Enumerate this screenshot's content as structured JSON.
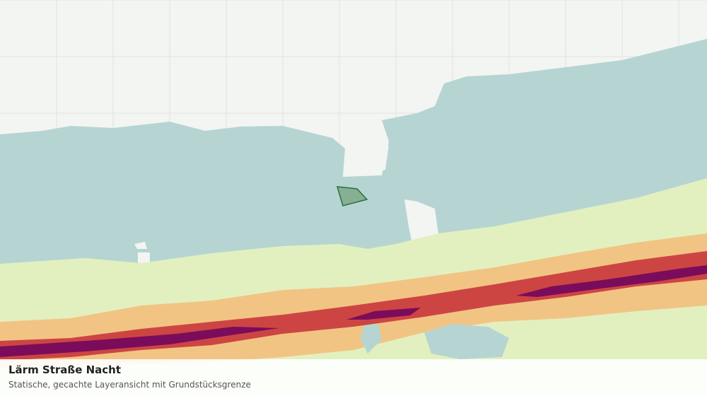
{
  "caption": {
    "title": "Lärm Straße Nacht",
    "subtitle": "Statische, gecachte Layeransicht mit Grundstücksgrenze"
  }
}
